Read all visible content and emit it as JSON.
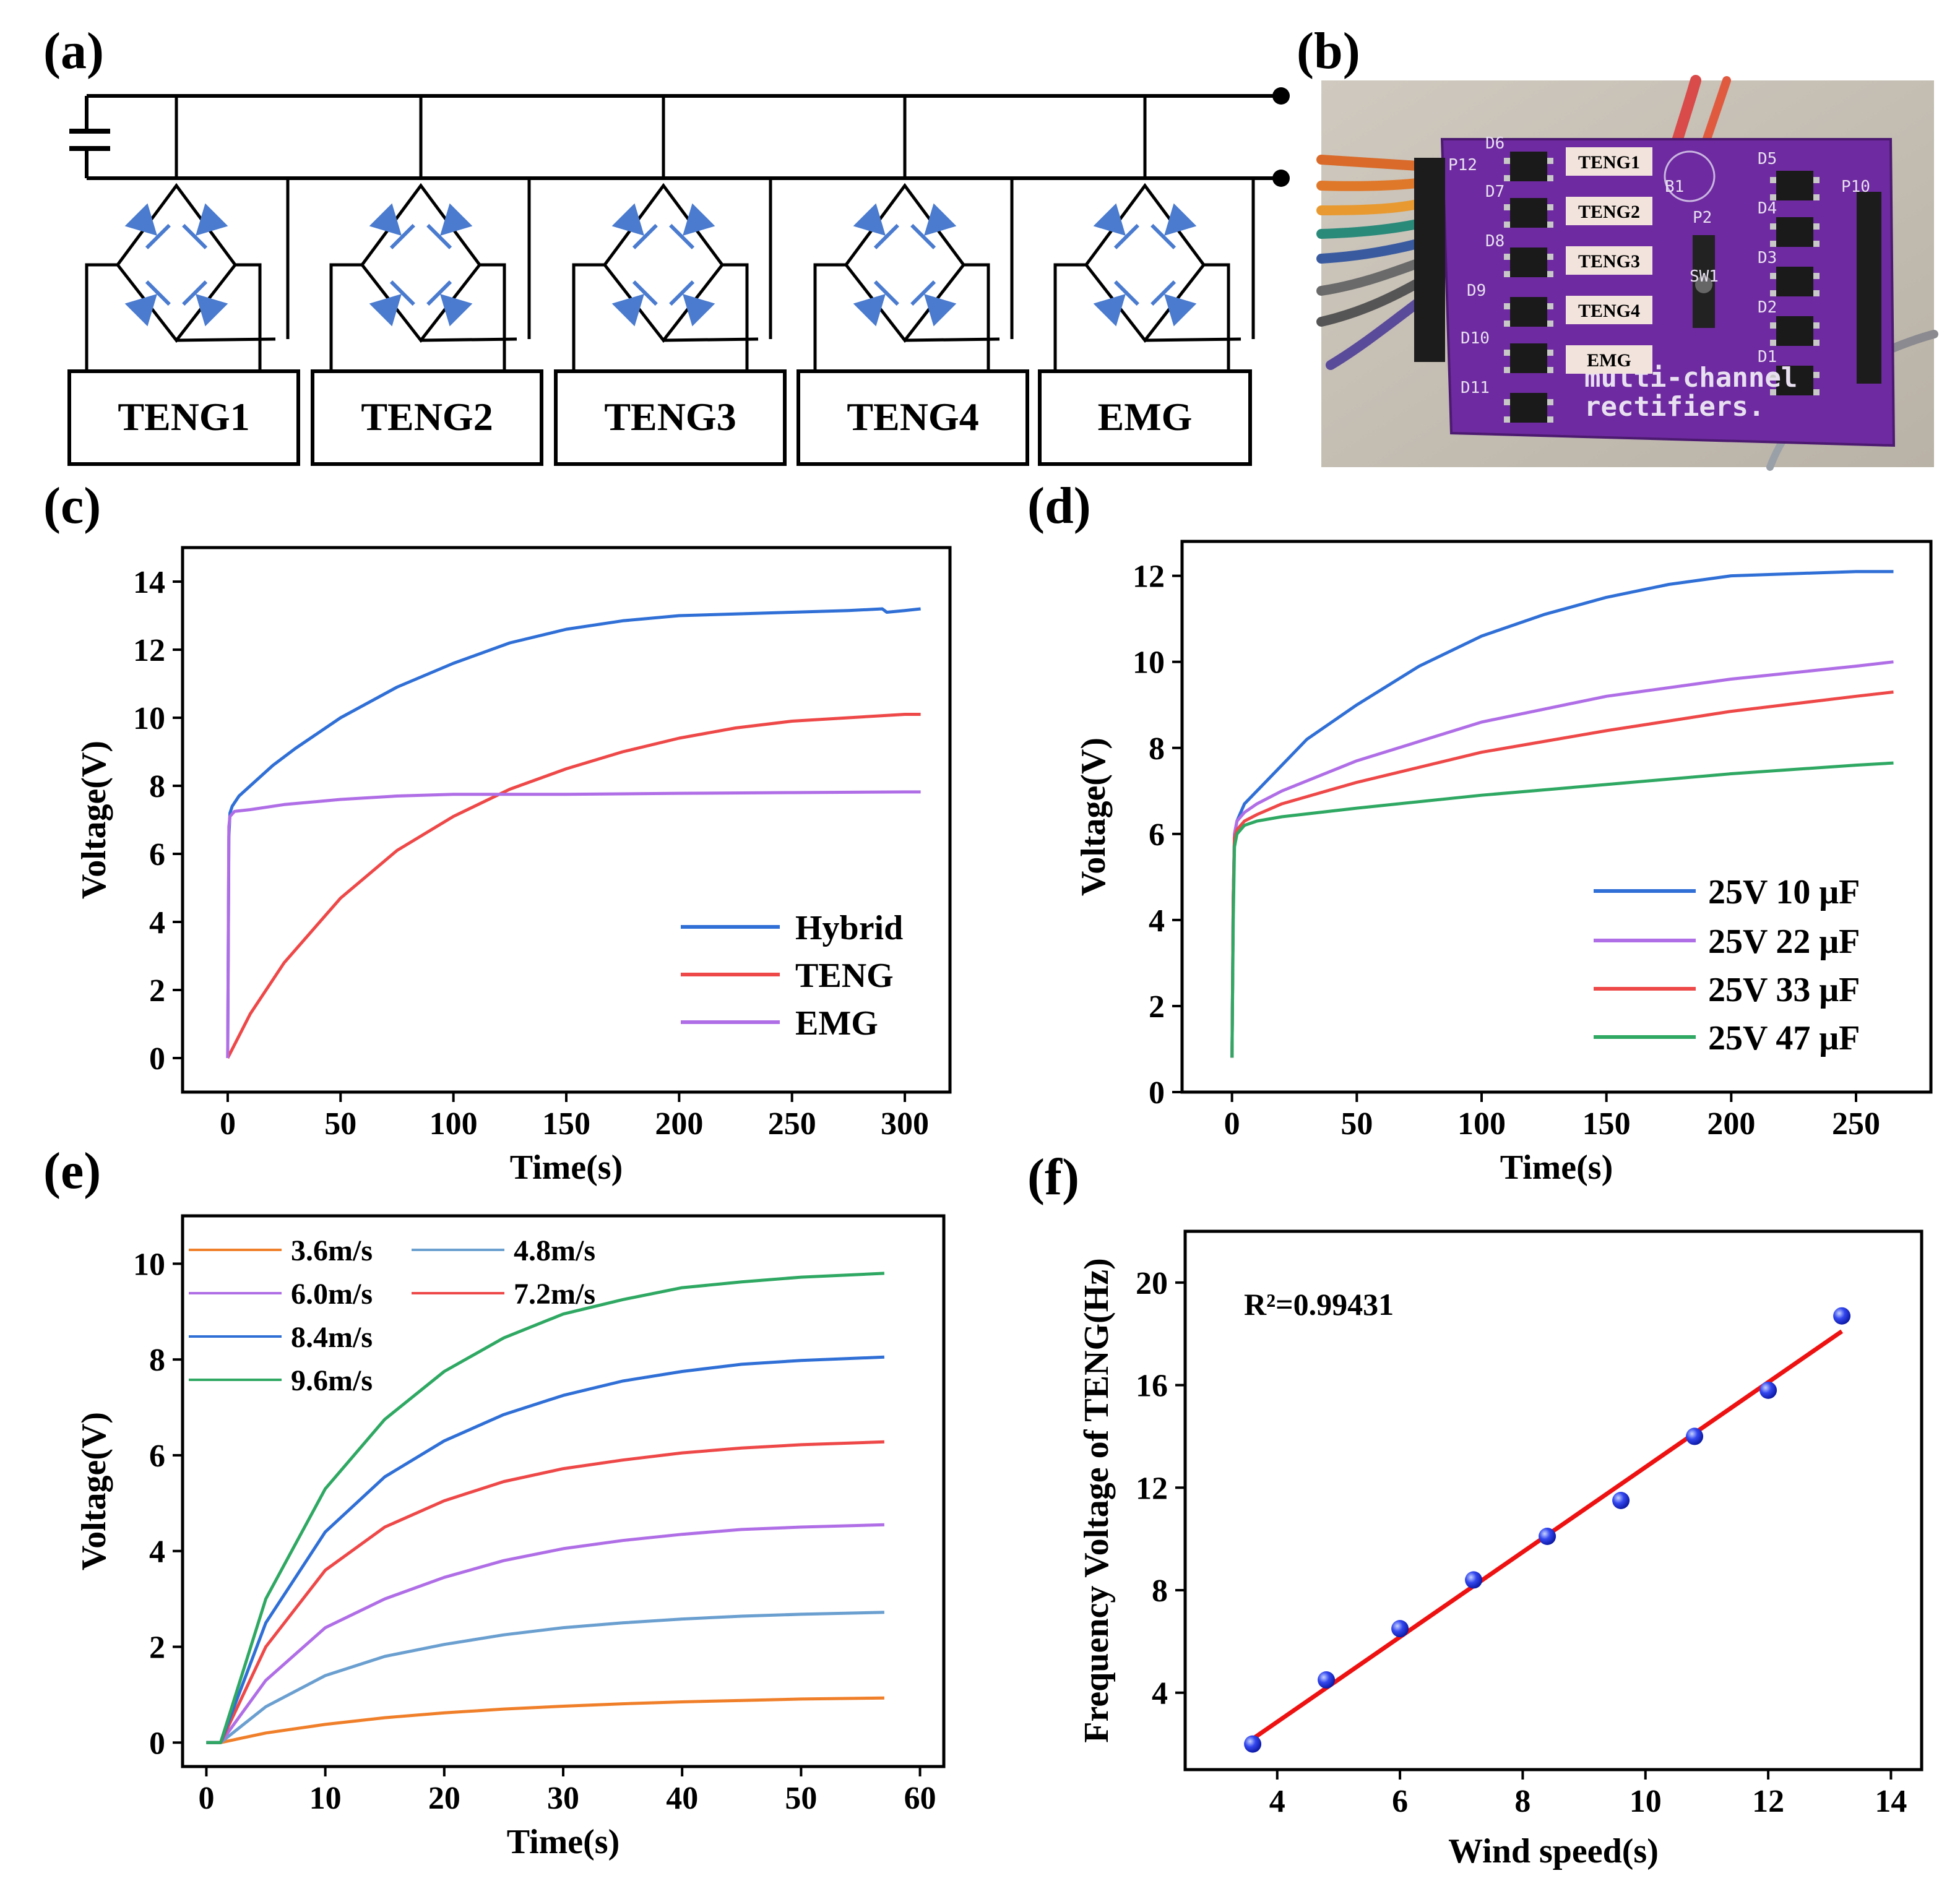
{
  "panels": {
    "a": {
      "label": "(a)",
      "boxes": [
        "TENG1",
        "TENG2",
        "TENG3",
        "TENG4",
        "EMG"
      ]
    },
    "b": {
      "label": "(b)",
      "overlay_labels": [
        "TENG1",
        "TENG2",
        "TENG3",
        "TENG4",
        "EMG"
      ],
      "silkscreen": [
        "D6",
        "D7",
        "D8",
        "D9",
        "D10",
        "D11",
        "D5",
        "D4",
        "D3",
        "D2",
        "D1",
        "P12",
        "P10",
        "P2",
        "SW1",
        "B1",
        "multi-channel",
        "rectifiers."
      ]
    }
  },
  "colors": {
    "hybrid": "#2f6fd6",
    "teng": "#ee4848",
    "emg": "#b06ee6",
    "c10": "#2f6fd6",
    "c22": "#b06ee6",
    "c33": "#ee4848",
    "c47": "#2ea862",
    "w36": "#f07f2a",
    "w48": "#6a9fd0",
    "w60": "#b06ee6",
    "w72": "#ee4848",
    "w84": "#2f6fd6",
    "w96": "#2ea862",
    "fit": "#ee1111",
    "points": "#1a2fe0",
    "diode": "#4a7bcf",
    "pcb": "#6e2aa0"
  },
  "chart_data": [
    {
      "panel": "(c)",
      "type": "line",
      "xlabel": "Time(s)",
      "ylabel": "Voltage(V)",
      "xlim": [
        -20,
        320
      ],
      "ylim": [
        -1,
        15
      ],
      "xticks": [
        0,
        50,
        100,
        150,
        200,
        250,
        300
      ],
      "yticks": [
        0,
        2,
        4,
        6,
        8,
        10,
        12,
        14
      ],
      "legend_position": "bottom-right",
      "series": [
        {
          "name": "Hybrid",
          "color_key": "hybrid",
          "x": [
            0,
            0.5,
            1,
            2,
            5,
            10,
            20,
            30,
            50,
            75,
            100,
            125,
            150,
            175,
            200,
            225,
            250,
            275,
            290,
            292,
            300,
            307
          ],
          "y": [
            0,
            6.5,
            7.2,
            7.4,
            7.7,
            8.0,
            8.6,
            9.1,
            10.0,
            10.9,
            11.6,
            12.2,
            12.6,
            12.85,
            13.0,
            13.05,
            13.1,
            13.15,
            13.2,
            13.1,
            13.15,
            13.2
          ]
        },
        {
          "name": "TENG",
          "color_key": "teng",
          "x": [
            0,
            10,
            25,
            50,
            75,
            100,
            125,
            150,
            175,
            200,
            225,
            250,
            275,
            300,
            307
          ],
          "y": [
            0,
            1.3,
            2.8,
            4.7,
            6.1,
            7.1,
            7.9,
            8.5,
            9.0,
            9.4,
            9.7,
            9.9,
            10.0,
            10.1,
            10.1
          ]
        },
        {
          "name": "EMG",
          "color_key": "emg",
          "x": [
            0,
            0.5,
            1,
            3,
            10,
            25,
            50,
            75,
            100,
            150,
            200,
            250,
            300,
            307
          ],
          "y": [
            0,
            6.8,
            7.1,
            7.25,
            7.3,
            7.45,
            7.6,
            7.7,
            7.75,
            7.75,
            7.78,
            7.8,
            7.82,
            7.82
          ]
        }
      ]
    },
    {
      "panel": "(d)",
      "type": "line",
      "xlabel": "Time(s)",
      "ylabel": "Voltage(V)",
      "xlim": [
        -20,
        280
      ],
      "ylim": [
        0,
        12.8
      ],
      "xticks": [
        0,
        50,
        100,
        150,
        200,
        250
      ],
      "yticks": [
        0,
        2,
        4,
        6,
        8,
        10,
        12
      ],
      "legend_position": "bottom-right",
      "series": [
        {
          "name": "25V 10 μF",
          "color_key": "c10",
          "x": [
            0,
            0.5,
            1,
            2,
            5,
            10,
            20,
            30,
            50,
            75,
            100,
            125,
            150,
            175,
            200,
            225,
            250,
            265
          ],
          "y": [
            0.8,
            4.5,
            6.0,
            6.3,
            6.7,
            7.0,
            7.6,
            8.2,
            9.0,
            9.9,
            10.6,
            11.1,
            11.5,
            11.8,
            12.0,
            12.05,
            12.1,
            12.1
          ]
        },
        {
          "name": "25V 22 μF",
          "color_key": "c22",
          "x": [
            0,
            0.5,
            1,
            2,
            5,
            10,
            20,
            50,
            100,
            150,
            200,
            250,
            265
          ],
          "y": [
            0.8,
            4.5,
            6.0,
            6.3,
            6.5,
            6.7,
            7.0,
            7.7,
            8.6,
            9.2,
            9.6,
            9.9,
            10.0
          ]
        },
        {
          "name": "25V 33 μF",
          "color_key": "c33",
          "x": [
            0,
            0.5,
            1,
            2,
            5,
            10,
            20,
            50,
            100,
            150,
            200,
            250,
            265
          ],
          "y": [
            0.8,
            4.5,
            5.9,
            6.1,
            6.3,
            6.45,
            6.7,
            7.2,
            7.9,
            8.4,
            8.85,
            9.2,
            9.3
          ]
        },
        {
          "name": "25V 47 μF",
          "color_key": "c47",
          "x": [
            0,
            0.5,
            1,
            2,
            5,
            10,
            20,
            50,
            100,
            150,
            200,
            250,
            265
          ],
          "y": [
            0.8,
            4.0,
            5.7,
            6.0,
            6.2,
            6.3,
            6.4,
            6.6,
            6.9,
            7.15,
            7.4,
            7.6,
            7.65
          ]
        }
      ]
    },
    {
      "panel": "(e)",
      "type": "line",
      "xlabel": "Time(s)",
      "ylabel": "Voltage(V)",
      "xlim": [
        -2,
        62
      ],
      "ylim": [
        -0.5,
        11
      ],
      "xticks": [
        0,
        10,
        20,
        30,
        40,
        50,
        60
      ],
      "yticks": [
        0,
        2,
        4,
        6,
        8,
        10
      ],
      "legend_position": "top-left",
      "series": [
        {
          "name": "3.6m/s",
          "color_key": "w36",
          "x": [
            0,
            1.2,
            5,
            10,
            15,
            20,
            25,
            30,
            35,
            40,
            45,
            50,
            57
          ],
          "y": [
            0,
            0,
            0.2,
            0.38,
            0.52,
            0.62,
            0.7,
            0.76,
            0.81,
            0.85,
            0.88,
            0.91,
            0.93
          ]
        },
        {
          "name": "4.8m/s",
          "color_key": "w48",
          "x": [
            0,
            1.2,
            5,
            10,
            15,
            20,
            25,
            30,
            35,
            40,
            45,
            50,
            57
          ],
          "y": [
            0,
            0,
            0.75,
            1.4,
            1.8,
            2.05,
            2.25,
            2.4,
            2.5,
            2.58,
            2.64,
            2.68,
            2.72
          ]
        },
        {
          "name": "6.0m/s",
          "color_key": "w60",
          "x": [
            0,
            1.2,
            5,
            10,
            15,
            20,
            25,
            30,
            35,
            40,
            45,
            50,
            57
          ],
          "y": [
            0,
            0,
            1.3,
            2.4,
            3.0,
            3.45,
            3.8,
            4.05,
            4.22,
            4.35,
            4.45,
            4.5,
            4.55
          ]
        },
        {
          "name": "7.2m/s",
          "color_key": "w72",
          "x": [
            0,
            1.2,
            5,
            10,
            15,
            20,
            25,
            30,
            35,
            40,
            45,
            50,
            57
          ],
          "y": [
            0,
            0,
            2.0,
            3.6,
            4.5,
            5.05,
            5.45,
            5.72,
            5.9,
            6.05,
            6.15,
            6.22,
            6.28
          ]
        },
        {
          "name": "8.4m/s",
          "color_key": "w84",
          "x": [
            0,
            1.2,
            5,
            10,
            15,
            20,
            25,
            30,
            35,
            40,
            45,
            50,
            57
          ],
          "y": [
            0,
            0,
            2.5,
            4.4,
            5.55,
            6.3,
            6.85,
            7.25,
            7.55,
            7.75,
            7.9,
            7.98,
            8.05
          ]
        },
        {
          "name": "9.6m/s",
          "color_key": "w96",
          "x": [
            0,
            1.2,
            5,
            10,
            15,
            20,
            25,
            30,
            35,
            40,
            45,
            50,
            57
          ],
          "y": [
            0,
            0,
            3.0,
            5.3,
            6.75,
            7.75,
            8.45,
            8.95,
            9.25,
            9.5,
            9.62,
            9.72,
            9.8
          ]
        }
      ]
    },
    {
      "panel": "(f)",
      "type": "scatter",
      "xlabel": "Wind speed(s)",
      "ylabel": "Frequency Voltage of TENG(Hz)",
      "xlim": [
        2.5,
        14.5
      ],
      "ylim": [
        1,
        22
      ],
      "xticks": [
        4,
        6,
        8,
        10,
        12,
        14
      ],
      "yticks": [
        4,
        8,
        12,
        16,
        20
      ],
      "annotation": "R²=0.99431",
      "points": {
        "x": [
          3.6,
          4.8,
          6.0,
          7.2,
          8.4,
          9.6,
          10.8,
          12.0,
          13.2
        ],
        "y": [
          2.0,
          4.5,
          6.5,
          8.4,
          10.1,
          11.5,
          14.0,
          15.8,
          18.7
        ]
      },
      "fit_line": {
        "x": [
          3.6,
          13.2
        ],
        "y": [
          2.2,
          18.1
        ]
      }
    }
  ]
}
